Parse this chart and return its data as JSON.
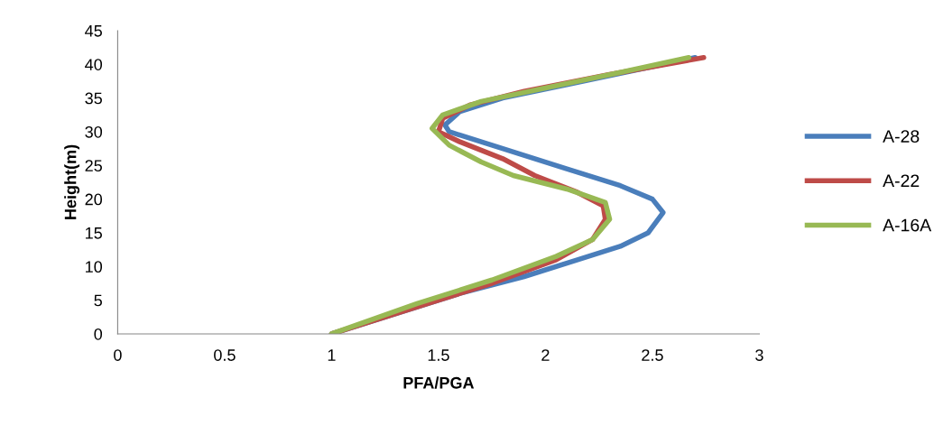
{
  "chart_data": {
    "type": "line",
    "xlabel": "PFA/PGA",
    "ylabel": "Height(m)",
    "xlim": [
      0,
      3
    ],
    "xticks": [
      0,
      0.5,
      1,
      1.5,
      2,
      2.5,
      3
    ],
    "ylim": [
      0,
      45
    ],
    "yticks": [
      0,
      5,
      10,
      15,
      20,
      25,
      30,
      35,
      40,
      45
    ],
    "grid": false,
    "legend": "right",
    "marker": "none",
    "line_style": "solid",
    "series": [
      {
        "name": "A-28",
        "color": "#4a7ebb",
        "x": [
          1,
          1.3,
          1.6,
          1.9,
          2.15,
          2.35,
          2.48,
          2.55,
          2.5,
          2.35,
          2.1,
          1.95,
          1.75,
          1.55,
          1.53,
          1.6,
          1.8,
          2.1,
          2.4,
          2.7
        ],
        "values": [
          0,
          3,
          6,
          8.5,
          11,
          13,
          15,
          18,
          20,
          22,
          24.5,
          26,
          28,
          30,
          31,
          33,
          35,
          37,
          39,
          41
        ]
      },
      {
        "name": "A-22",
        "color": "#be4b48",
        "x": [
          1,
          1.4,
          1.75,
          2.05,
          2.22,
          2.28,
          2.27,
          2.15,
          1.95,
          1.8,
          1.6,
          1.5,
          1.52,
          1.65,
          1.9,
          2.3,
          2.74
        ],
        "values": [
          0,
          4,
          7.5,
          11,
          14,
          17,
          19,
          21,
          23.5,
          26,
          28.5,
          30,
          32,
          34,
          36,
          38.5,
          41
        ]
      },
      {
        "name": "A-16A",
        "color": "#98b954",
        "x": [
          1,
          1.4,
          1.75,
          2.05,
          2.22,
          2.3,
          2.28,
          2.1,
          1.85,
          1.7,
          1.55,
          1.47,
          1.52,
          1.7,
          2.0,
          2.35,
          2.67
        ],
        "values": [
          0,
          4.5,
          8,
          11.5,
          14,
          17,
          19.5,
          21.5,
          23.5,
          25.5,
          28,
          30.5,
          32.5,
          34.5,
          36.5,
          38.8,
          41
        ]
      }
    ]
  }
}
